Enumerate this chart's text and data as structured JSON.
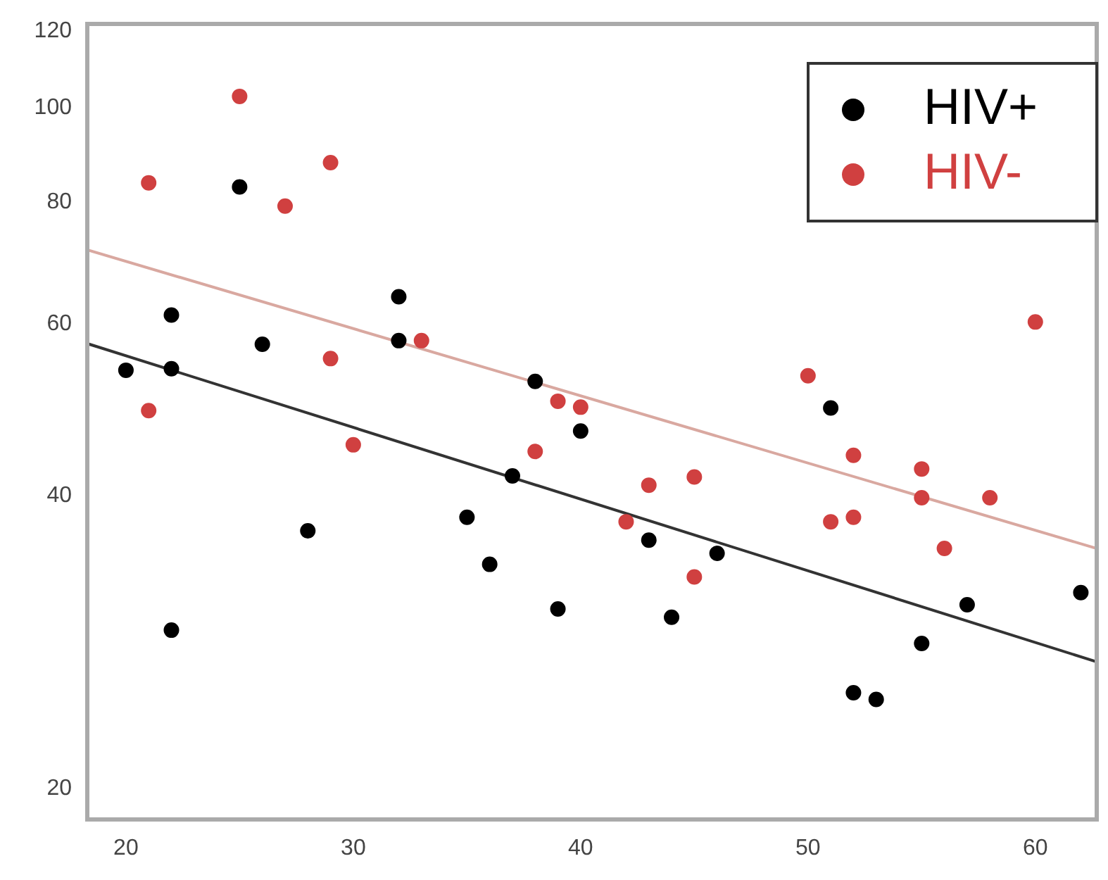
{
  "chart_data": {
    "type": "scatter",
    "log": "y",
    "grid": false,
    "legend": "top right",
    "marker": "circle",
    "xlim": [
      18.3,
      62.7
    ],
    "xticks": [
      20,
      30,
      40,
      50,
      60
    ],
    "ylim": [
      18.6,
      122
    ],
    "yticks": [
      20,
      40,
      60,
      80,
      100,
      120
    ],
    "series": [
      {
        "name": "HIV+",
        "color": "#000000",
        "x": [
          20,
          22,
          22,
          22,
          25,
          26,
          28,
          32,
          32,
          35,
          36,
          37,
          38,
          39,
          40,
          43,
          44,
          46,
          51,
          52,
          53,
          55,
          57,
          62
        ],
        "values": [
          53.8,
          61.3,
          54,
          29.1,
          83,
          57.2,
          36.8,
          64,
          57.7,
          38,
          34,
          41.9,
          52.4,
          30.6,
          46.6,
          36,
          30,
          34.9,
          49.2,
          25.1,
          24.7,
          28.2,
          30.9,
          31.8
        ]
      },
      {
        "name": "HIV-",
        "color": "#d04040",
        "x": [
          21,
          21,
          25,
          27,
          29,
          29,
          30,
          33,
          38,
          39,
          40,
          42,
          43,
          45,
          45,
          50,
          51,
          52,
          52,
          55,
          55,
          56,
          58,
          60
        ],
        "values": [
          83.8,
          48.9,
          102.8,
          79.3,
          87.9,
          55.3,
          45.1,
          57.7,
          44.4,
          50,
          49.3,
          37.6,
          41,
          41.8,
          33,
          53.1,
          37.6,
          44,
          38,
          42.6,
          39.8,
          35.3,
          39.8,
          60.3
        ]
      },
      {
        "type": "line",
        "marker": "none",
        "color": "#d9a8a0",
        "x": [
          18.3,
          62.7
        ],
        "values": [
          71.5,
          35.3
        ]
      },
      {
        "type": "line",
        "marker": "none",
        "color": "#333333",
        "x": [
          18.3,
          62.7
        ],
        "values": [
          57.3,
          27
        ]
      }
    ]
  }
}
